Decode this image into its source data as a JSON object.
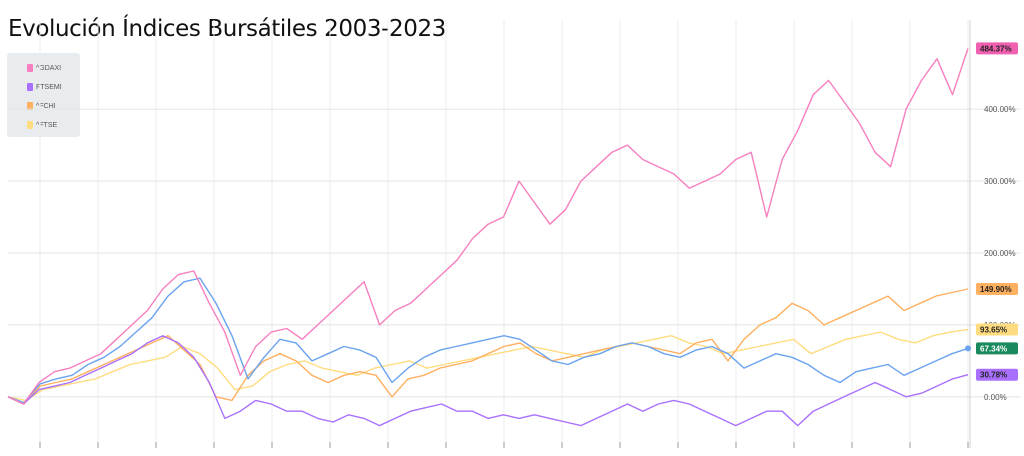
{
  "title": "Evolución Índices Bursátiles 2003-2023",
  "colors": {
    "GDAXI": "#f77fbe",
    "FTSEMI": "#a970ff",
    "FCHI": "#ffb060",
    "FTSE": "#ffdc80",
    "FTSEMI_line": "#6aa3f0",
    "badge_green": "#1a8a5e"
  },
  "chart_data": {
    "type": "line",
    "title": "Evolución Índices Bursátiles 2003-2023",
    "xlabel": "",
    "ylabel": "",
    "ylim": [
      -60,
      510
    ],
    "y_ticks": [
      {
        "value": 0,
        "label": "0.00%"
      },
      {
        "value": 100,
        "label": "100.00%"
      },
      {
        "value": 200,
        "label": "200.00%"
      },
      {
        "value": 300,
        "label": "300.00%"
      },
      {
        "value": 400,
        "label": "400.00%"
      }
    ],
    "x_gridlines": 17,
    "grid": true,
    "legend": "top-left",
    "end_labels": [
      {
        "label": "484.37%",
        "value": 484.37,
        "color": "#f060b0"
      },
      {
        "label": "149.90%",
        "value": 149.9,
        "color": "#ffb060"
      },
      {
        "label": "93.65%",
        "value": 93.65,
        "color": "#ffdc80"
      },
      {
        "label": "67.34%",
        "value": 67.34,
        "color": "#1a8a5e"
      },
      {
        "label": "30.78%",
        "value": 30.78,
        "color": "#a970ff"
      }
    ],
    "series": [
      {
        "name": "^GDAXI",
        "color": "#f77fbe",
        "values": [
          0,
          -10,
          20,
          35,
          40,
          50,
          60,
          80,
          100,
          120,
          150,
          170,
          175,
          130,
          90,
          30,
          70,
          90,
          95,
          80,
          100,
          120,
          140,
          160,
          100,
          120,
          130,
          150,
          170,
          190,
          220,
          240,
          250,
          300,
          270,
          240,
          260,
          300,
          320,
          340,
          350,
          330,
          320,
          310,
          290,
          300,
          310,
          330,
          340,
          250,
          330,
          370,
          420,
          440,
          410,
          380,
          340,
          320,
          400,
          440,
          470,
          420,
          484.37
        ]
      },
      {
        "name": "FTSEMI",
        "color": "#a970ff",
        "values": [
          0,
          -10,
          10,
          15,
          20,
          30,
          40,
          50,
          60,
          75,
          85,
          75,
          55,
          20,
          -30,
          -20,
          -5,
          -10,
          -20,
          -20,
          -30,
          -35,
          -25,
          -30,
          -40,
          -30,
          -20,
          -15,
          -10,
          -20,
          -20,
          -30,
          -25,
          -30,
          -25,
          -30,
          -35,
          -40,
          -30,
          -20,
          -10,
          -20,
          -10,
          -5,
          -10,
          -20,
          -30,
          -40,
          -30,
          -20,
          -20,
          -40,
          -20,
          -10,
          0,
          10,
          20,
          10,
          0,
          5,
          15,
          25,
          30.78
        ]
      },
      {
        "name": "^FCHI",
        "color": "#ffb060",
        "values": [
          0,
          -10,
          15,
          20,
          25,
          35,
          45,
          55,
          65,
          75,
          85,
          65,
          45,
          0,
          -5,
          30,
          50,
          60,
          50,
          30,
          20,
          30,
          35,
          30,
          0,
          25,
          30,
          40,
          45,
          50,
          60,
          70,
          75,
          60,
          50,
          55,
          60,
          65,
          70,
          75,
          70,
          65,
          60,
          75,
          80,
          50,
          80,
          100,
          110,
          130,
          120,
          100,
          110,
          120,
          130,
          140,
          120,
          130,
          140,
          145,
          149.9
        ]
      },
      {
        "name": "^FTSE",
        "color": "#ffdc80",
        "values": [
          0,
          -5,
          10,
          15,
          20,
          25,
          35,
          45,
          50,
          55,
          70,
          60,
          40,
          10,
          15,
          35,
          45,
          50,
          40,
          35,
          30,
          40,
          45,
          50,
          40,
          45,
          50,
          55,
          60,
          65,
          70,
          65,
          60,
          55,
          65,
          70,
          75,
          80,
          85,
          75,
          70,
          60,
          65,
          70,
          75,
          80,
          60,
          70,
          80,
          85,
          90,
          80,
          75,
          85,
          90,
          93.65
        ]
      },
      {
        "name": "FTSEMI-blue",
        "color": "#6aa3f0",
        "values": [
          0,
          -8,
          18,
          25,
          30,
          45,
          55,
          70,
          90,
          110,
          140,
          160,
          165,
          130,
          85,
          25,
          55,
          80,
          75,
          50,
          60,
          70,
          65,
          55,
          20,
          40,
          55,
          65,
          70,
          75,
          80,
          85,
          80,
          65,
          50,
          45,
          55,
          60,
          70,
          75,
          70,
          60,
          55,
          65,
          70,
          60,
          40,
          50,
          60,
          55,
          45,
          30,
          20,
          35,
          40,
          45,
          30,
          40,
          50,
          60,
          67.34
        ]
      }
    ]
  },
  "legend": [
    {
      "label": "^GDAXI",
      "color": "#f77fbe"
    },
    {
      "label": "FTSEMI",
      "color": "#a970ff"
    },
    {
      "label": "^FCHI",
      "color": "#ffb060"
    },
    {
      "label": "^FTSE",
      "color": "#ffdc80"
    }
  ]
}
